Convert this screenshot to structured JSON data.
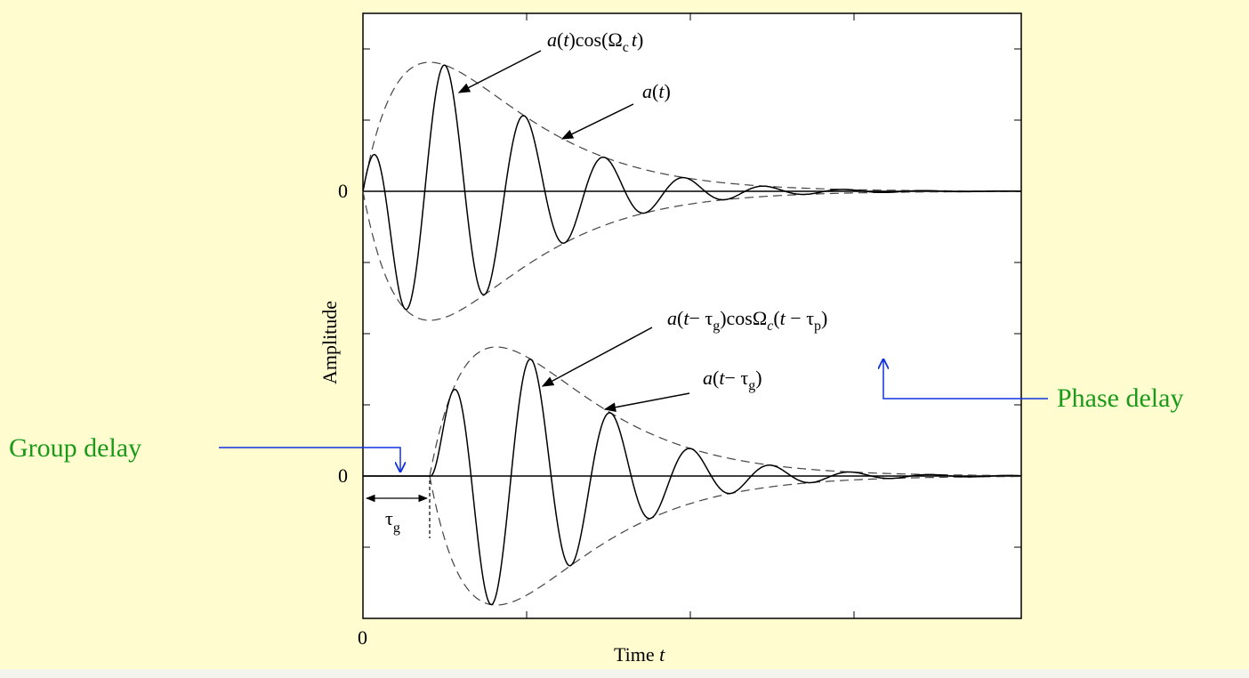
{
  "axes": {
    "y_label": "Amplitude",
    "x_label": [
      "Time ",
      "t"
    ],
    "y_tick_top": "0",
    "y_tick_bottom": "0",
    "x_tick": "0"
  },
  "annotations": {
    "top_signal": [
      "a",
      "(",
      "t",
      ")cos(Ω",
      "c",
      "t",
      ")"
    ],
    "top_envelope": [
      "a",
      "(",
      "t",
      ")"
    ],
    "bottom_signal": [
      "a",
      "(",
      "t",
      "− τ",
      "g",
      ")cosΩ",
      "c",
      "(",
      "t",
      " − τ",
      "p",
      ")"
    ],
    "bottom_envelope": [
      "a",
      "(",
      "t",
      "− τ",
      "g",
      ")"
    ],
    "tau_g": [
      "τ",
      "g"
    ]
  },
  "callouts": {
    "group_delay": "Group delay",
    "phase_delay": "Phase delay"
  }
}
